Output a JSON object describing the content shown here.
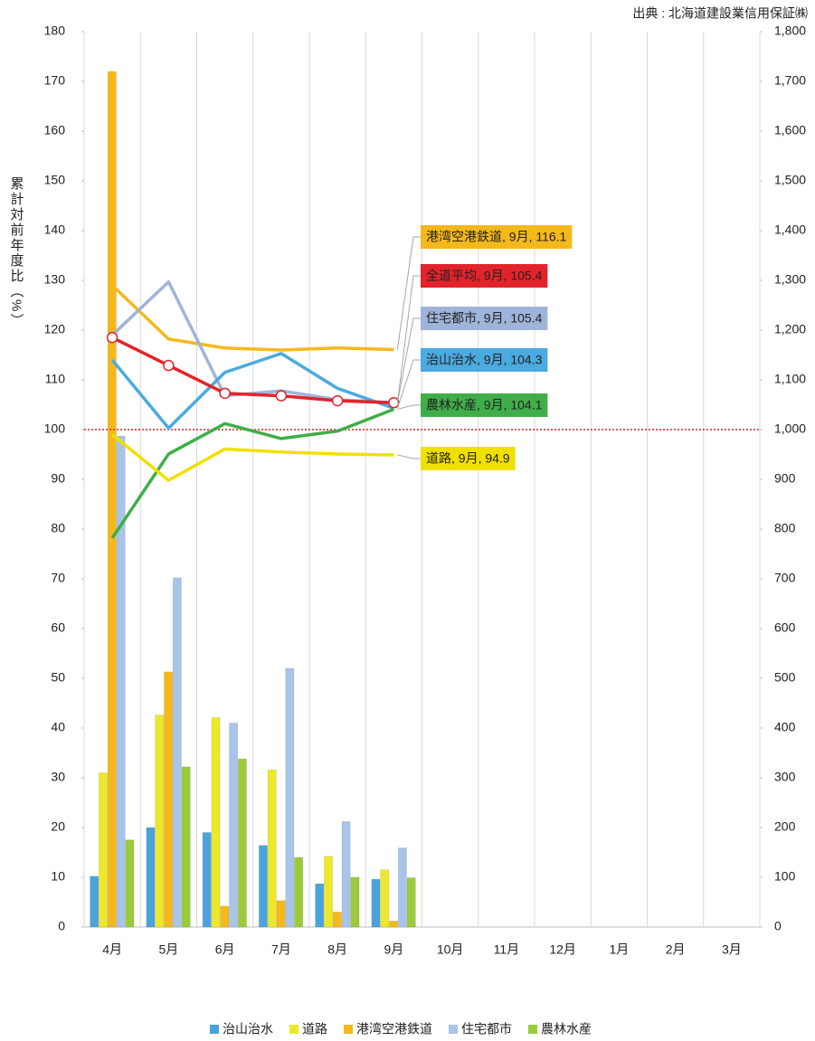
{
  "chart_data": {
    "type": "bar_line",
    "source": "出典 : 北海道建設業信用保証㈱",
    "y_label": "累計対前年度比（%）",
    "categories": [
      "4月",
      "5月",
      "6月",
      "7月",
      "8月",
      "9月",
      "10月",
      "11月",
      "12月",
      "1月",
      "2月",
      "3月"
    ],
    "ylim": [
      0,
      180
    ],
    "yticks": [
      0,
      10,
      20,
      30,
      40,
      50,
      60,
      70,
      80,
      90,
      100,
      110,
      120,
      130,
      140,
      150,
      160,
      170,
      180
    ],
    "y2lim": [
      0,
      1800
    ],
    "y2ticks": [
      0,
      100,
      200,
      300,
      400,
      500,
      600,
      700,
      800,
      900,
      {
        "value": 1000,
        "label": "1,000"
      },
      {
        "value": 1100,
        "label": "1,100"
      },
      {
        "value": 1200,
        "label": "1,200"
      },
      {
        "value": 1300,
        "label": "1,300"
      },
      {
        "value": 1400,
        "label": "1,400"
      },
      {
        "value": 1500,
        "label": "1,500"
      },
      {
        "value": 1600,
        "label": "1,600"
      },
      {
        "value": 1700,
        "label": "1,700"
      },
      {
        "value": 1800,
        "label": "1,800"
      }
    ],
    "reference_line": {
      "value": 100,
      "color": "#e02020"
    },
    "series": [
      {
        "name": "治山治水",
        "color": "#4ba3dc",
        "axis": "y2",
        "values": [
          102,
          200,
          190,
          164,
          87,
          96,
          null,
          null,
          null,
          null,
          null,
          null
        ]
      },
      {
        "name": "道路",
        "color": "#ede82a",
        "axis": "y2",
        "values": [
          310,
          426,
          421,
          316,
          142,
          115,
          null,
          null,
          null,
          null,
          null,
          null
        ]
      },
      {
        "name": "港湾空港鉄道",
        "color": "#f5b81a",
        "axis": "y2",
        "values": [
          1720,
          513,
          42,
          53,
          30,
          12,
          null,
          null,
          null,
          null,
          null,
          null
        ]
      },
      {
        "name": "住宅都市",
        "color": "#a8c4e8",
        "axis": "y2",
        "values": [
          987,
          702,
          410,
          520,
          212,
          159,
          null,
          null,
          null,
          null,
          null,
          null
        ]
      },
      {
        "name": "農林水産",
        "color": "#9bcb3b",
        "axis": "y2",
        "values": [
          175,
          322,
          338,
          140,
          100,
          99,
          null,
          null,
          null,
          null,
          null,
          null
        ]
      }
    ],
    "lines": [
      {
        "label": "港湾空港鉄道, 9月, 116.1",
        "color": "#f5b81a",
        "values": [
          129,
          118.2,
          116.4,
          116,
          116.4,
          116.1,
          null,
          null,
          null,
          null,
          null,
          null
        ]
      },
      {
        "label": "全道平均, 9月, 105.4",
        "color": "#e3232b",
        "markers": true,
        "values": [
          118.5,
          112.9,
          107.3,
          106.8,
          105.8,
          105.4,
          null,
          null,
          null,
          null,
          null,
          null
        ]
      },
      {
        "label": "住宅都市, 9月, 105.4",
        "color": "#9fb4da",
        "values": [
          119,
          129.7,
          106.8,
          107.8,
          106,
          105.4,
          null,
          null,
          null,
          null,
          null,
          null
        ]
      },
      {
        "label": "治山治水, 9月, 104.3",
        "color": "#4baadf",
        "values": [
          114,
          100.3,
          111.5,
          115.3,
          108.3,
          104.3,
          null,
          null,
          null,
          null,
          null,
          null
        ]
      },
      {
        "label": "農林水産, 9月, 104.1",
        "color": "#3fae49",
        "values": [
          78.2,
          95.1,
          101.2,
          98.2,
          99.7,
          104.1,
          null,
          null,
          null,
          null,
          null,
          null
        ]
      },
      {
        "label": "道路, 9月, 94.9",
        "color": "#f0e000",
        "values": [
          99,
          89.8,
          96.1,
          95.5,
          95.1,
          94.9,
          null,
          null,
          null,
          null,
          null,
          null
        ]
      }
    ]
  }
}
